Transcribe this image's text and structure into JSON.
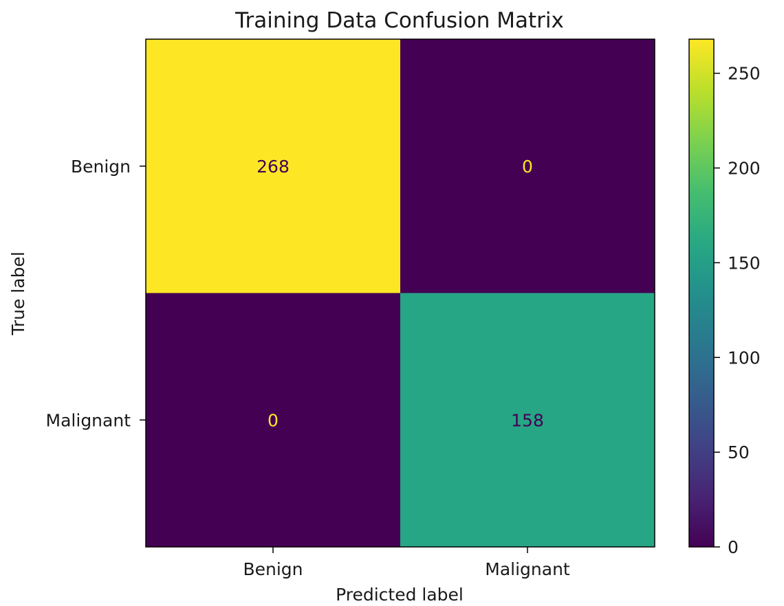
{
  "chart_data": {
    "type": "heatmap",
    "title": "Training Data Confusion Matrix",
    "xlabel": "Predicted label",
    "ylabel": "True label",
    "x_categories": [
      "Benign",
      "Malignant"
    ],
    "y_categories": [
      "Benign",
      "Malignant"
    ],
    "values": [
      [
        268,
        0
      ],
      [
        0,
        158
      ]
    ],
    "colormap": "viridis",
    "color_range": [
      0,
      268
    ],
    "colorbar_ticks": [
      0,
      50,
      100,
      150,
      200,
      250
    ],
    "colors": {
      "low": "#440154",
      "high": "#fde725",
      "value_158": "#22a784"
    },
    "text_colors": {
      "on_dark": "#fde725",
      "on_light": "#440154"
    },
    "grid": false
  }
}
